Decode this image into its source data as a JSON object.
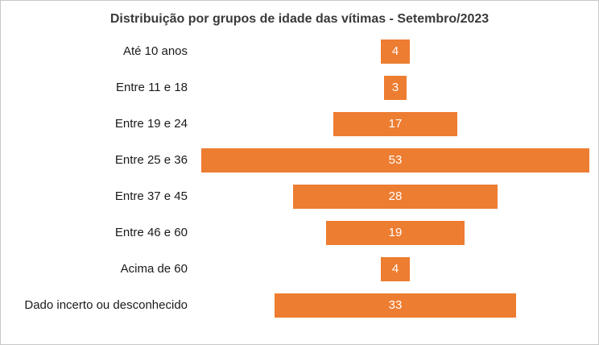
{
  "colors": {
    "bar": "#ED7D31",
    "bar_value_text": "#ffffff",
    "title_text": "#3a3a3a",
    "label_text": "#1a1a1a",
    "chart_border": "#c8c8c8"
  },
  "chart_data": {
    "type": "bar",
    "subtype": "centered-horizontal-funnel",
    "title": "Distribuição por grupos de idade das vítimas - Setembro/2023",
    "categories": [
      "Até 10 anos",
      "Entre 11 e 18",
      "Entre 19 e 24",
      "Entre 25 e 36",
      "Entre 37 e 45",
      "Entre 46 e 60",
      "Acima de 60",
      "Dado incerto ou desconhecido"
    ],
    "values": [
      4,
      3,
      17,
      53,
      28,
      19,
      4,
      33
    ],
    "xlabel": "",
    "ylabel": "",
    "value_labels_visible": true,
    "legend": "none",
    "grid": "off",
    "xlim": [
      0,
      53
    ]
  }
}
